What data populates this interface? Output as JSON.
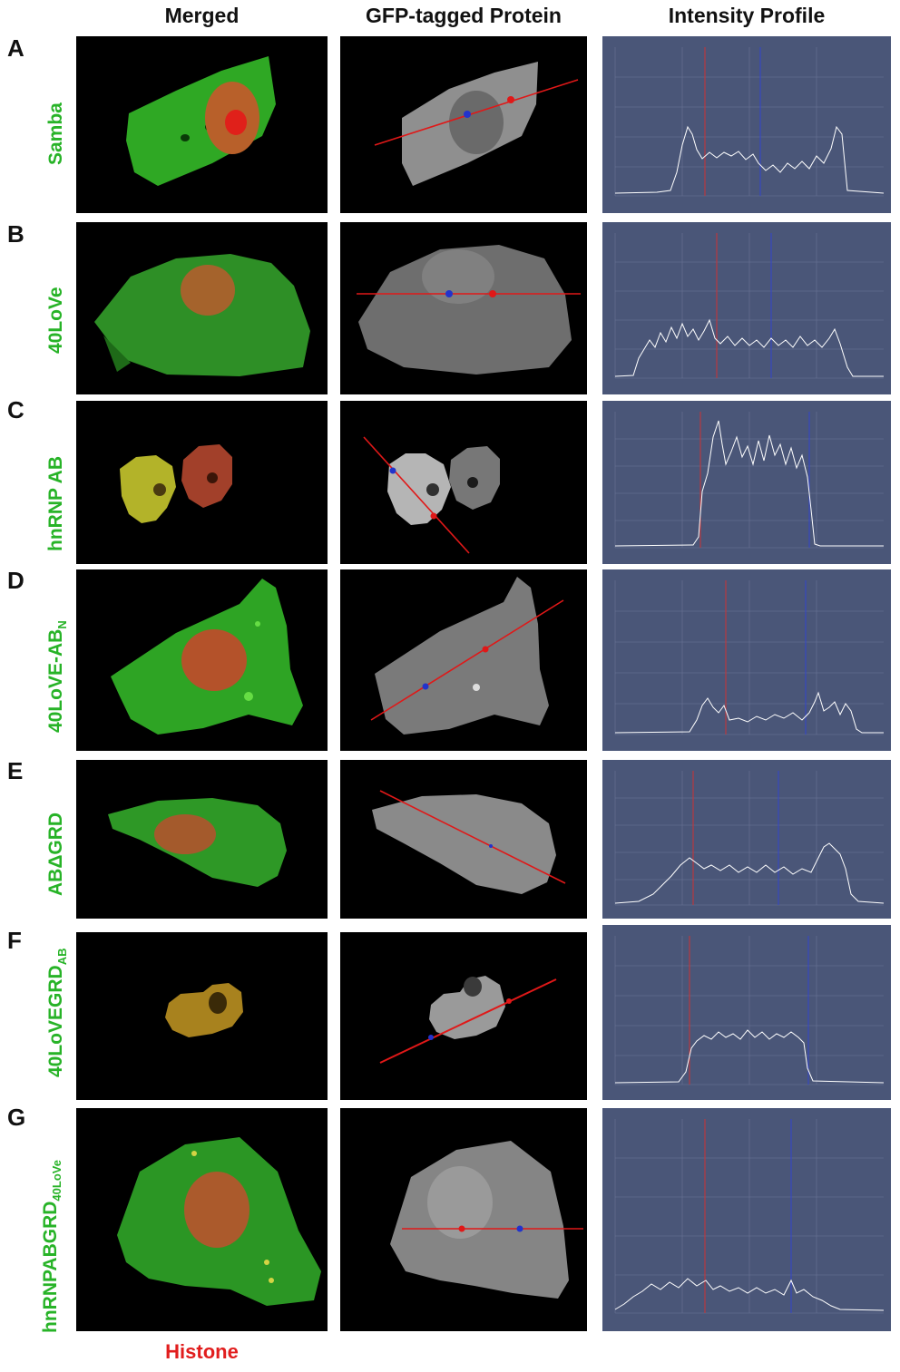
{
  "headers": {
    "merged": "Merged",
    "gfp": "GFP-tagged Protein",
    "profile": "Intensity Profile"
  },
  "histone_label": "Histone",
  "rows": [
    {
      "letter": "A",
      "label": "Samba",
      "sub": ""
    },
    {
      "letter": "B",
      "label": "40LoVe",
      "sub": ""
    },
    {
      "letter": "C",
      "label": "hnRNP AB",
      "sub": ""
    },
    {
      "letter": "D",
      "label": "40LoVE-AB",
      "sub": "N"
    },
    {
      "letter": "E",
      "label": "ABΔGRD",
      "sub": ""
    },
    {
      "letter": "F",
      "label": "40LoVEGRD",
      "sub": "AB"
    },
    {
      "letter": "G",
      "label": "hnRNPABGRD",
      "sub": "40LoVe"
    }
  ],
  "colors": {
    "label_green": "#27b327",
    "histone_red": "#e11d1d",
    "plot_background": "#4a5678",
    "gfp_green": "#2fae24",
    "nucleus_red": "#c0522a"
  }
}
